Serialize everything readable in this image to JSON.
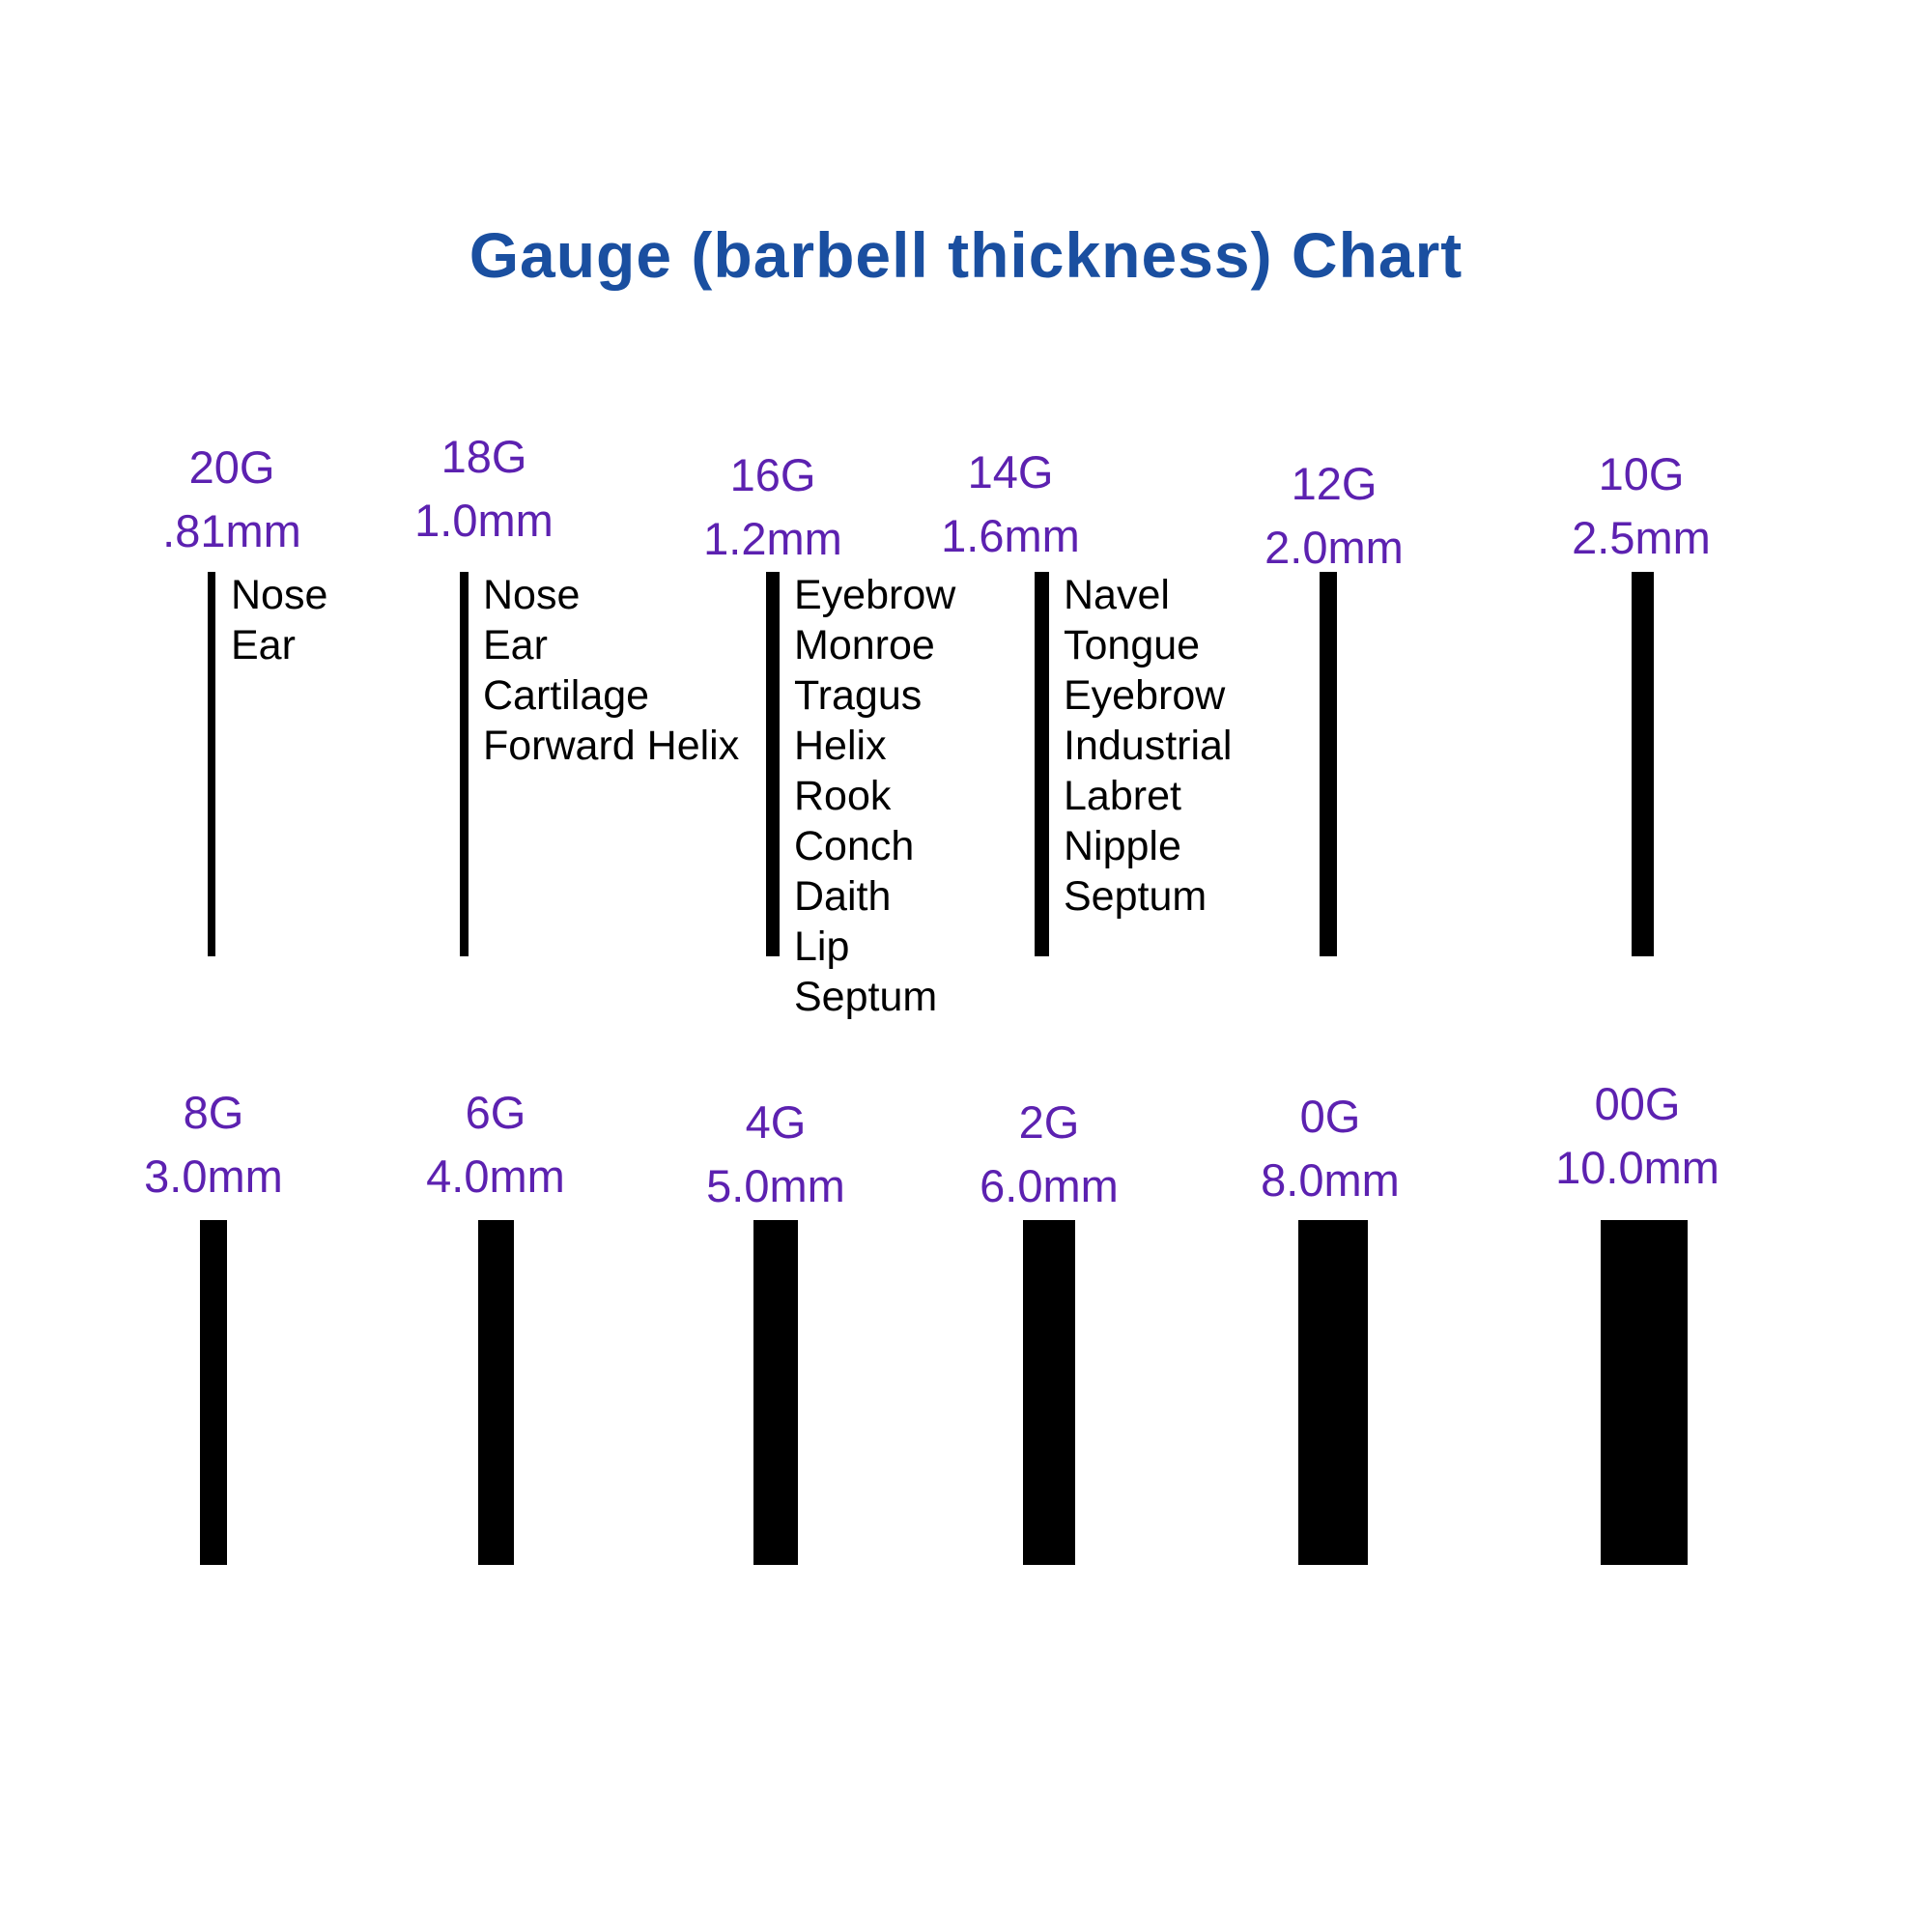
{
  "title": "Gauge (barbell thickness) Chart",
  "colors": {
    "title_blue": "#1a4fa0",
    "label_purple": "#5c21b0",
    "bar_black": "#000000",
    "background": "#ffffff"
  },
  "gauges": [
    {
      "gauge": "20G",
      "mm": ".81mm",
      "uses": [
        "Nose",
        "Ear"
      ]
    },
    {
      "gauge": "18G",
      "mm": "1.0mm",
      "uses": [
        "Nose",
        "Ear",
        "Cartilage",
        "Forward Helix"
      ]
    },
    {
      "gauge": "16G",
      "mm": "1.2mm",
      "uses": [
        "Eyebrow",
        "Monroe",
        "Tragus",
        "Helix",
        "Rook",
        "Conch",
        "Daith",
        "Lip",
        "Septum"
      ]
    },
    {
      "gauge": "14G",
      "mm": "1.6mm",
      "uses": [
        "Navel",
        "Tongue",
        "Eyebrow",
        "Industrial",
        "Labret",
        "Nipple",
        "Septum"
      ]
    },
    {
      "gauge": "12G",
      "mm": "2.0mm",
      "uses": []
    },
    {
      "gauge": "10G",
      "mm": "2.5mm",
      "uses": []
    },
    {
      "gauge": "8G",
      "mm": "3.0mm",
      "uses": []
    },
    {
      "gauge": "6G",
      "mm": "4.0mm",
      "uses": []
    },
    {
      "gauge": "4G",
      "mm": "5.0mm",
      "uses": []
    },
    {
      "gauge": "2G",
      "mm": "6.0mm",
      "uses": []
    },
    {
      "gauge": "0G",
      "mm": "8.0mm",
      "uses": []
    },
    {
      "gauge": "00G",
      "mm": "10.0mm",
      "uses": []
    }
  ],
  "chart_data": {
    "type": "bar",
    "title": "Gauge (barbell thickness) Chart",
    "categories": [
      "20G",
      "18G",
      "16G",
      "14G",
      "12G",
      "10G",
      "8G",
      "6G",
      "4G",
      "2G",
      "0G",
      "00G"
    ],
    "values_mm": [
      0.81,
      1.0,
      1.2,
      1.6,
      2.0,
      2.5,
      3.0,
      4.0,
      5.0,
      6.0,
      8.0,
      10.0
    ],
    "value_labels": [
      ".81mm",
      "1.0mm",
      "1.2mm",
      "1.6mm",
      "2.0mm",
      "2.5mm",
      "3.0mm",
      "4.0mm",
      "5.0mm",
      "6.0mm",
      "8.0mm",
      "10.0mm"
    ],
    "encoding": "bar width encodes barbell thickness in mm; bars are solid black vertical rectangles",
    "layout": "two rows of six gauges; rows read left to right from thinnest (20G) to thickest (00G)",
    "annotations": {
      "20G": [
        "Nose",
        "Ear"
      ],
      "18G": [
        "Nose",
        "Ear",
        "Cartilage",
        "Forward Helix"
      ],
      "16G": [
        "Eyebrow",
        "Monroe",
        "Tragus",
        "Helix",
        "Rook",
        "Conch",
        "Daith",
        "Lip",
        "Septum"
      ],
      "14G": [
        "Navel",
        "Tongue",
        "Eyebrow",
        "Industrial",
        "Labret",
        "Nipple",
        "Septum"
      ]
    }
  }
}
